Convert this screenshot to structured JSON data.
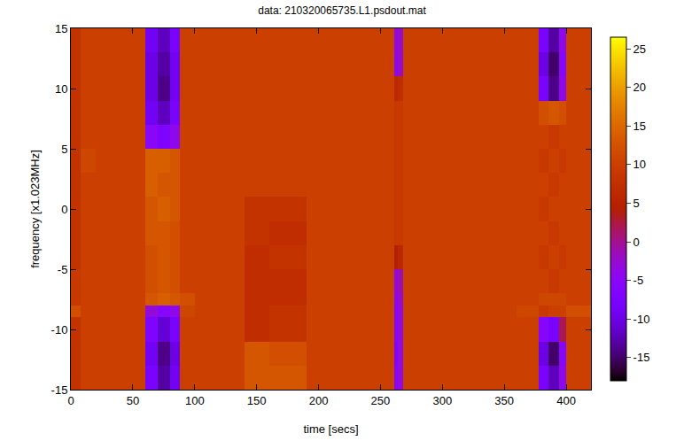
{
  "chart_data": {
    "type": "heatmap",
    "title": "data: 210320065735.L1.psdout.mat",
    "x_label": "time [secs]",
    "y_label": "frequency [x1.023MHz]",
    "xlim": [
      0,
      420
    ],
    "ylim": [
      -15,
      15
    ],
    "xticks": [
      0,
      50,
      100,
      150,
      200,
      250,
      300,
      350,
      400
    ],
    "yticks": [
      -15,
      -10,
      -5,
      0,
      5,
      10,
      15
    ],
    "grid": false,
    "x_edges": [
      0,
      8,
      20,
      40,
      60,
      70,
      80,
      88,
      100,
      140,
      160,
      190,
      220,
      261,
      264,
      268,
      290,
      330,
      360,
      378,
      386,
      394,
      400,
      420
    ],
    "y_edges": [
      -15,
      -13,
      -11,
      -9,
      -8,
      -7,
      -5,
      -3,
      -1,
      1,
      3,
      5,
      7,
      9,
      11,
      13,
      15
    ],
    "z": [
      [
        8,
        10,
        10,
        10,
        -8,
        -13,
        -9,
        10,
        10,
        13,
        13,
        10,
        10,
        -6,
        -3,
        10,
        10,
        10,
        10,
        -8,
        -12,
        -4,
        10
      ],
      [
        8,
        10,
        10,
        10,
        -9,
        -14,
        -10,
        10,
        10,
        13,
        12,
        10,
        10,
        -7,
        -3,
        10,
        10,
        10,
        10,
        -10,
        -15,
        -6,
        10
      ],
      [
        8,
        10,
        10,
        10,
        -7,
        -11,
        -8,
        10,
        10,
        7,
        8,
        10,
        10,
        -6,
        -3,
        10,
        10,
        10,
        10,
        -6,
        -8,
        2,
        10
      ],
      [
        12,
        10,
        10,
        10,
        -3,
        -6,
        -4,
        11,
        10,
        7,
        8,
        10,
        10,
        -6,
        -3,
        10,
        10,
        10,
        11,
        9,
        10,
        10,
        12
      ],
      [
        9,
        10,
        10,
        10,
        13,
        14,
        13,
        12,
        10,
        7,
        7,
        10,
        10,
        -5,
        -2,
        10,
        10,
        10,
        10,
        11,
        11,
        11,
        10
      ],
      [
        9,
        10,
        10,
        10,
        12,
        13,
        12,
        10,
        10,
        7,
        7,
        10,
        10,
        -4,
        -1,
        10,
        10,
        10,
        10,
        10,
        9,
        10,
        10
      ],
      [
        8,
        10,
        10,
        10,
        12,
        13,
        12,
        10,
        10,
        7,
        8,
        10,
        10,
        4,
        6,
        10,
        10,
        10,
        10,
        9,
        10,
        9,
        10
      ],
      [
        8,
        10,
        10,
        10,
        13,
        13,
        12,
        10,
        10,
        8,
        7,
        10,
        10,
        9,
        9,
        10,
        10,
        10,
        10,
        10,
        9,
        10,
        10
      ],
      [
        8,
        10,
        10,
        10,
        13,
        14,
        13,
        10,
        10,
        8,
        8,
        10,
        10,
        9,
        9,
        10,
        10,
        10,
        10,
        9,
        10,
        10,
        10
      ],
      [
        8,
        10,
        10,
        10,
        14,
        13,
        13,
        10,
        10,
        10,
        10,
        10,
        10,
        9,
        9,
        10,
        10,
        10,
        10,
        10,
        9,
        10,
        10
      ],
      [
        8,
        11,
        10,
        10,
        14,
        14,
        13,
        10,
        10,
        10,
        10,
        10,
        10,
        9,
        9,
        10,
        10,
        10,
        10,
        9,
        10,
        9,
        10
      ],
      [
        8,
        10,
        10,
        10,
        -5,
        -7,
        -4,
        10,
        10,
        10,
        10,
        10,
        10,
        9,
        9,
        10,
        10,
        10,
        10,
        10,
        9,
        10,
        10
      ],
      [
        8,
        10,
        10,
        10,
        -9,
        -12,
        -8,
        10,
        10,
        10,
        10,
        10,
        10,
        9,
        9,
        10,
        10,
        10,
        10,
        12,
        13,
        12,
        10
      ],
      [
        8,
        10,
        10,
        10,
        -10,
        -14,
        -9,
        10,
        10,
        10,
        10,
        10,
        10,
        6,
        7,
        10,
        10,
        10,
        10,
        -8,
        -14,
        -4,
        10
      ],
      [
        8,
        10,
        10,
        10,
        -10,
        -13,
        -9,
        10,
        10,
        10,
        10,
        10,
        10,
        -5,
        -2,
        10,
        10,
        10,
        10,
        -10,
        -15,
        -6,
        10
      ],
      [
        8,
        10,
        10,
        10,
        -9,
        -12,
        -8,
        10,
        10,
        10,
        10,
        10,
        10,
        -4,
        -2,
        10,
        10,
        10,
        10,
        -8,
        -13,
        -4,
        10
      ]
    ],
    "colorbar_range": [
      -18,
      26.5
    ],
    "colorbar_ticks": [
      -15,
      -10,
      -5,
      0,
      5,
      10,
      15,
      20,
      25
    ]
  }
}
